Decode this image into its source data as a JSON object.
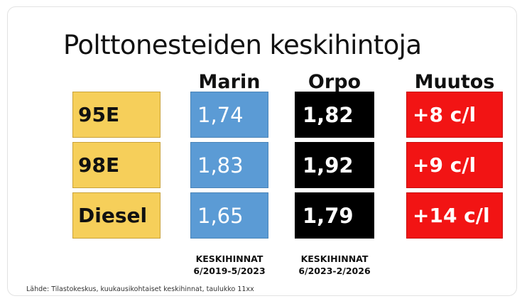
{
  "chart_data": {
    "type": "table",
    "title": "Polttonesteiden keskihintoja",
    "columns": [
      "Marin",
      "Orpo",
      "Muutos"
    ],
    "rows": [
      {
        "fuel": "95E",
        "marin": "1,74",
        "orpo": "1,82",
        "change": "+8  c/l"
      },
      {
        "fuel": "98E",
        "marin": "1,83",
        "orpo": "1,92",
        "change": "+9 c/l"
      },
      {
        "fuel": "Diesel",
        "marin": "1,65",
        "orpo": "1,79",
        "change": "+14 c/l"
      }
    ],
    "periods": {
      "marin": {
        "label": "KESKIHINNAT",
        "range": "6/2019-5/2023"
      },
      "orpo": {
        "label": "KESKIHINNAT",
        "range": "6/2023-2/2026"
      }
    },
    "source": "Lähde: Tilastokeskus, kuukausikohtaiset keskihinnat, taulukko 11xx"
  },
  "colors": {
    "fuel_cell": "#f6cf5a",
    "marin_cell": "#5b9bd5",
    "orpo_cell": "#000000",
    "change_cell": "#f21414"
  }
}
